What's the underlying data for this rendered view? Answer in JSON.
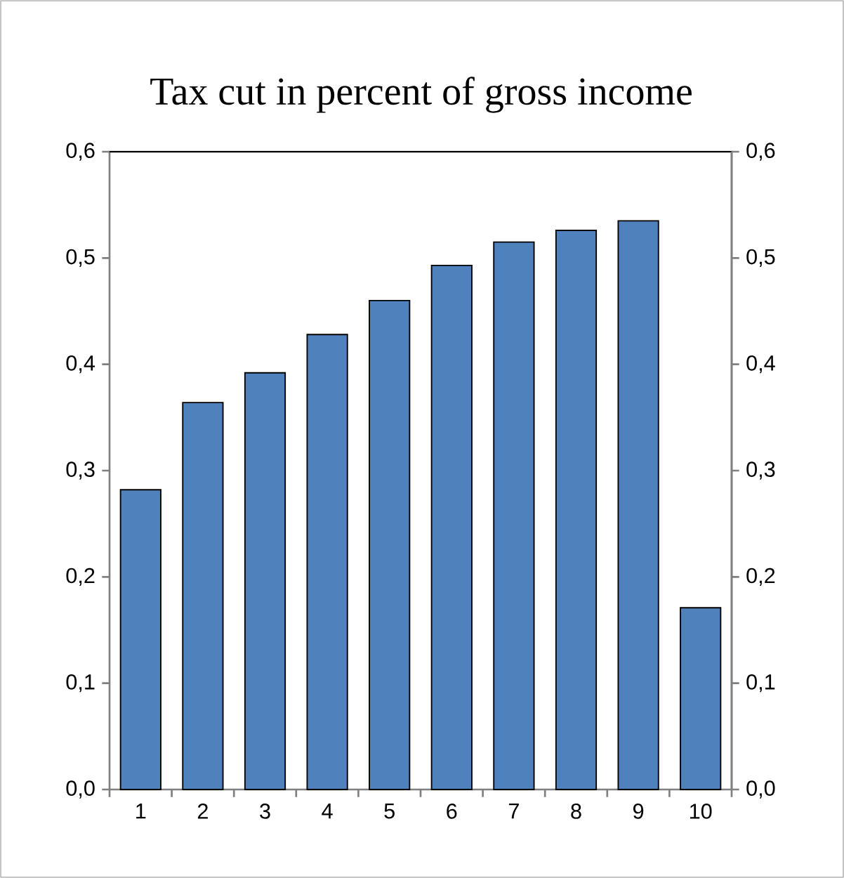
{
  "chart_data": {
    "type": "bar",
    "title": "Tax cut in percent of gross income",
    "categories": [
      "1",
      "2",
      "3",
      "4",
      "5",
      "6",
      "7",
      "8",
      "9",
      "10"
    ],
    "values": [
      0.282,
      0.364,
      0.392,
      0.428,
      0.46,
      0.493,
      0.515,
      0.526,
      0.535,
      0.171
    ],
    "color": "#4f81bd",
    "ylim": [
      0,
      0.6
    ],
    "yticks": [
      {
        "value": 0,
        "label": "0,0"
      },
      {
        "value": 0.1,
        "label": "0,1"
      },
      {
        "value": 0.2,
        "label": "0,2"
      },
      {
        "value": 0.3,
        "label": "0,3"
      },
      {
        "value": 0.4,
        "label": "0,4"
      },
      {
        "value": 0.5,
        "label": "0,5"
      },
      {
        "value": 0.6,
        "label": "0,6"
      }
    ],
    "y2lim": [
      0,
      0.6
    ],
    "y2ticks": [
      {
        "value": 0,
        "label": "0,0"
      },
      {
        "value": 0.1,
        "label": "0,1"
      },
      {
        "value": 0.2,
        "label": "0,2"
      },
      {
        "value": 0.3,
        "label": "0,3"
      },
      {
        "value": 0.4,
        "label": "0,4"
      },
      {
        "value": 0.5,
        "label": "0,5"
      },
      {
        "value": 0.6,
        "label": "0,6"
      }
    ]
  }
}
